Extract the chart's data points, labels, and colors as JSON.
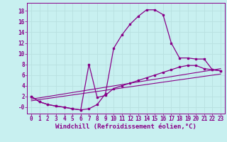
{
  "bg_color": "#c8f0f0",
  "line_color": "#880088",
  "grid_color": "#b8e0e0",
  "xlabel": "Windchill (Refroidissement éolien,°C)",
  "xlim": [
    -0.5,
    23.5
  ],
  "ylim": [
    -1.2,
    19.5
  ],
  "xticks": [
    0,
    1,
    2,
    3,
    4,
    5,
    6,
    7,
    8,
    9,
    10,
    11,
    12,
    13,
    14,
    15,
    16,
    17,
    18,
    19,
    20,
    21,
    22,
    23
  ],
  "yticks": [
    0,
    2,
    4,
    6,
    8,
    10,
    12,
    14,
    16,
    18
  ],
  "ytick_labels": [
    "-0",
    "2",
    "4",
    "6",
    "8",
    "10",
    "12",
    "14",
    "16",
    "18"
  ],
  "curve1_x": [
    0,
    1,
    2,
    3,
    4,
    5,
    6,
    7,
    8,
    9,
    10,
    11,
    12,
    13,
    14,
    15,
    16,
    17,
    18,
    19,
    20,
    21,
    22,
    23
  ],
  "curve1_y": [
    2.0,
    1.0,
    0.5,
    0.2,
    0.0,
    -0.3,
    -0.5,
    -0.3,
    0.5,
    2.5,
    11.0,
    13.5,
    15.5,
    17.0,
    18.2,
    18.2,
    17.3,
    12.0,
    9.2,
    9.2,
    9.0,
    9.0,
    7.0,
    6.8
  ],
  "curve2_x": [
    0,
    1,
    2,
    3,
    4,
    5,
    6,
    7,
    8,
    9,
    10,
    11,
    12,
    13,
    14,
    15,
    16,
    17,
    18,
    19,
    20,
    21,
    22,
    23
  ],
  "curve2_y": [
    2.0,
    1.0,
    0.5,
    0.2,
    0.0,
    -0.3,
    -0.5,
    8.0,
    1.8,
    2.2,
    3.5,
    4.0,
    4.5,
    5.0,
    5.5,
    6.0,
    6.5,
    7.0,
    7.5,
    7.8,
    7.8,
    7.2,
    7.0,
    6.8
  ],
  "line1_x": [
    0,
    23
  ],
  "line1_y": [
    1.2,
    6.2
  ],
  "line2_x": [
    0,
    23
  ],
  "line2_y": [
    1.5,
    7.2
  ],
  "tick_fontsize": 5.5,
  "label_fontsize": 6.5
}
